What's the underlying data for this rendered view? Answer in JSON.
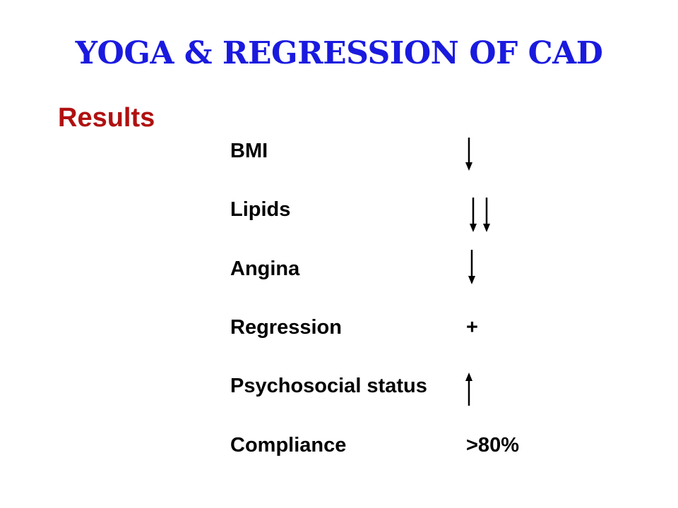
{
  "slide": {
    "title": "YOGA & REGRESSION OF CAD",
    "subtitle": "Results",
    "colors": {
      "title": "#1a1adf",
      "subtitle": "#b01010",
      "text": "#000000",
      "background": "#ffffff"
    }
  },
  "rows": [
    {
      "label": "BMI",
      "value": "",
      "icon": "arrow-down-icon"
    },
    {
      "label": "Lipids",
      "value": "",
      "icon": "double-arrow-down-icon"
    },
    {
      "label": "Angina",
      "value": "",
      "icon": "arrow-down-icon"
    },
    {
      "label": "Regression",
      "value": "+",
      "icon": ""
    },
    {
      "label": "Psychosocial status",
      "value": "",
      "icon": "arrow-up-icon"
    },
    {
      "label": "Compliance",
      "value": ">80%",
      "icon": ""
    }
  ]
}
